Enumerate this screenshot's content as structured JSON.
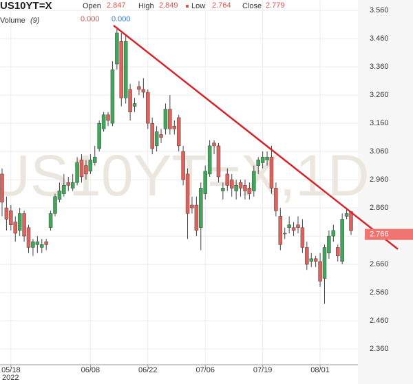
{
  "chart_data": {
    "type": "candlestick",
    "header": {
      "symbol": "US10YT=X",
      "open_label": "Open",
      "open": "2.847",
      "high_label": "High",
      "high": "2.849",
      "low_label": "Low",
      "low": "2.764",
      "close_label": "Close",
      "close": "2.779",
      "volume_label": "Volume",
      "volume_param": "(9)",
      "volume_a": "0.000",
      "volume_b": "0.000"
    },
    "watermark": "US10YT=X,1D",
    "year_label": "2022",
    "categories": [
      null,
      null,
      "05/18",
      null,
      null,
      null,
      null,
      null,
      null,
      null,
      null,
      null,
      null,
      null,
      null,
      null,
      null,
      null,
      null,
      null,
      "06/08",
      null,
      null,
      null,
      null,
      null,
      null,
      null,
      null,
      null,
      null,
      null,
      null,
      "06/22",
      null,
      null,
      null,
      null,
      null,
      null,
      null,
      null,
      null,
      null,
      null,
      null,
      "07/06",
      null,
      null,
      null,
      null,
      null,
      null,
      null,
      null,
      null,
      null,
      null,
      null,
      "07/19",
      null,
      null,
      null,
      null,
      null,
      null,
      null,
      null,
      null,
      null,
      null,
      null,
      "08/01",
      null,
      null,
      null,
      null,
      null,
      null,
      null
    ],
    "open": [
      2.98,
      2.86,
      2.85,
      2.81,
      2.78,
      2.84,
      2.79,
      2.72,
      2.73,
      2.72,
      2.74,
      2.79,
      2.84,
      2.89,
      2.91,
      2.95,
      2.93,
      2.95,
      3.03,
      3.01,
      2.99,
      3.02,
      3.07,
      3.14,
      3.19,
      3.16,
      3.37,
      3.45,
      3.25,
      3.28,
      3.22,
      3.29,
      3.28,
      3.27,
      3.16,
      3.08,
      3.12,
      3.14,
      3.21,
      3.15,
      3.18,
      3.06,
      2.98,
      2.87,
      2.87,
      2.79,
      2.91,
      2.98,
      3.09,
      3.08,
      2.92,
      2.98,
      2.96,
      2.92,
      2.95,
      2.94,
      2.93,
      2.92,
      3.01,
      3.02,
      3.03,
      3.04,
      2.93,
      2.83,
      2.77,
      2.79,
      2.79,
      2.8,
      2.79,
      2.72,
      2.67,
      2.68,
      2.67,
      2.61,
      2.7,
      2.76,
      2.72,
      2.67,
      2.83,
      2.847
    ],
    "high": [
      3.0,
      2.9,
      2.87,
      2.83,
      2.86,
      2.85,
      2.8,
      2.75,
      2.76,
      2.75,
      2.75,
      2.85,
      2.91,
      2.95,
      2.98,
      2.97,
      2.98,
      3.04,
      3.05,
      3.03,
      3.05,
      3.08,
      3.17,
      3.2,
      3.2,
      3.38,
      3.5,
      3.48,
      3.47,
      3.3,
      3.25,
      3.31,
      3.32,
      3.28,
      3.18,
      3.15,
      3.14,
      3.23,
      3.26,
      3.17,
      3.19,
      3.08,
      3.0,
      2.9,
      2.9,
      2.95,
      3.01,
      3.1,
      3.1,
      3.09,
      2.95,
      3.0,
      2.98,
      2.96,
      2.96,
      2.96,
      2.95,
      3.01,
      3.04,
      3.06,
      3.06,
      3.08,
      2.95,
      2.86,
      2.79,
      2.83,
      2.81,
      2.83,
      2.82,
      2.74,
      2.7,
      2.69,
      2.7,
      2.73,
      2.78,
      2.8,
      2.73,
      2.84,
      2.86,
      2.849
    ],
    "low": [
      2.83,
      2.78,
      2.78,
      2.74,
      2.76,
      2.74,
      2.7,
      2.69,
      2.7,
      2.7,
      2.71,
      2.78,
      2.83,
      2.88,
      2.9,
      2.92,
      2.92,
      2.94,
      2.95,
      2.96,
      2.98,
      3.01,
      3.06,
      3.13,
      3.15,
      3.15,
      3.35,
      3.22,
      3.23,
      3.17,
      3.2,
      3.26,
      3.25,
      3.14,
      3.05,
      3.06,
      3.09,
      3.12,
      3.12,
      3.12,
      3.06,
      2.94,
      2.75,
      2.84,
      2.76,
      2.71,
      2.89,
      2.97,
      3.05,
      2.95,
      2.89,
      2.92,
      2.9,
      2.89,
      2.9,
      2.89,
      2.89,
      2.9,
      2.98,
      3.0,
      3.01,
      2.91,
      2.83,
      2.71,
      2.75,
      2.77,
      2.76,
      2.77,
      2.7,
      2.64,
      2.65,
      2.65,
      2.58,
      2.52,
      2.68,
      2.74,
      2.67,
      2.66,
      2.82,
      2.764
    ],
    "close": [
      2.88,
      2.82,
      2.8,
      2.77,
      2.84,
      2.76,
      2.72,
      2.74,
      2.74,
      2.73,
      2.73,
      2.84,
      2.9,
      2.92,
      2.94,
      2.94,
      2.95,
      3.02,
      2.97,
      2.98,
      3.03,
      3.04,
      3.16,
      3.19,
      3.17,
      3.35,
      3.48,
      3.25,
      3.45,
      3.2,
      3.23,
      3.28,
      3.27,
      3.16,
      3.07,
      3.13,
      3.11,
      3.21,
      3.14,
      3.14,
      3.08,
      2.96,
      2.84,
      2.86,
      2.78,
      2.93,
      2.99,
      3.08,
      3.08,
      2.97,
      2.93,
      2.94,
      2.93,
      2.94,
      2.93,
      2.92,
      2.91,
      2.99,
      3.03,
      3.04,
      3.04,
      2.93,
      2.85,
      2.73,
      2.77,
      2.8,
      2.78,
      2.79,
      2.72,
      2.66,
      2.68,
      2.67,
      2.6,
      2.72,
      2.76,
      2.78,
      2.69,
      2.82,
      2.84,
      2.779
    ],
    "up_color": "#3fa75a",
    "down_color": "#e0625c",
    "last_price": 2.766,
    "ylim": [
      2.304,
      3.597
    ],
    "yticks": [
      {
        "value": 3.56,
        "label": "3.560"
      },
      {
        "value": 3.46,
        "label": "3.460"
      },
      {
        "value": 3.36,
        "label": "3.360"
      },
      {
        "value": 3.26,
        "label": "3.260"
      },
      {
        "value": 3.16,
        "label": "3.160"
      },
      {
        "value": 3.06,
        "label": "3.060"
      },
      {
        "value": 2.96,
        "label": "2.960"
      },
      {
        "value": 2.86,
        "label": "2.860"
      },
      {
        "value": 2.76,
        "label": "2.760"
      },
      {
        "value": 2.66,
        "label": "2.660"
      },
      {
        "value": 2.56,
        "label": "2.560"
      },
      {
        "value": 2.46,
        "label": "2.460"
      },
      {
        "value": 2.36,
        "label": "2.360"
      }
    ],
    "grid": true
  }
}
